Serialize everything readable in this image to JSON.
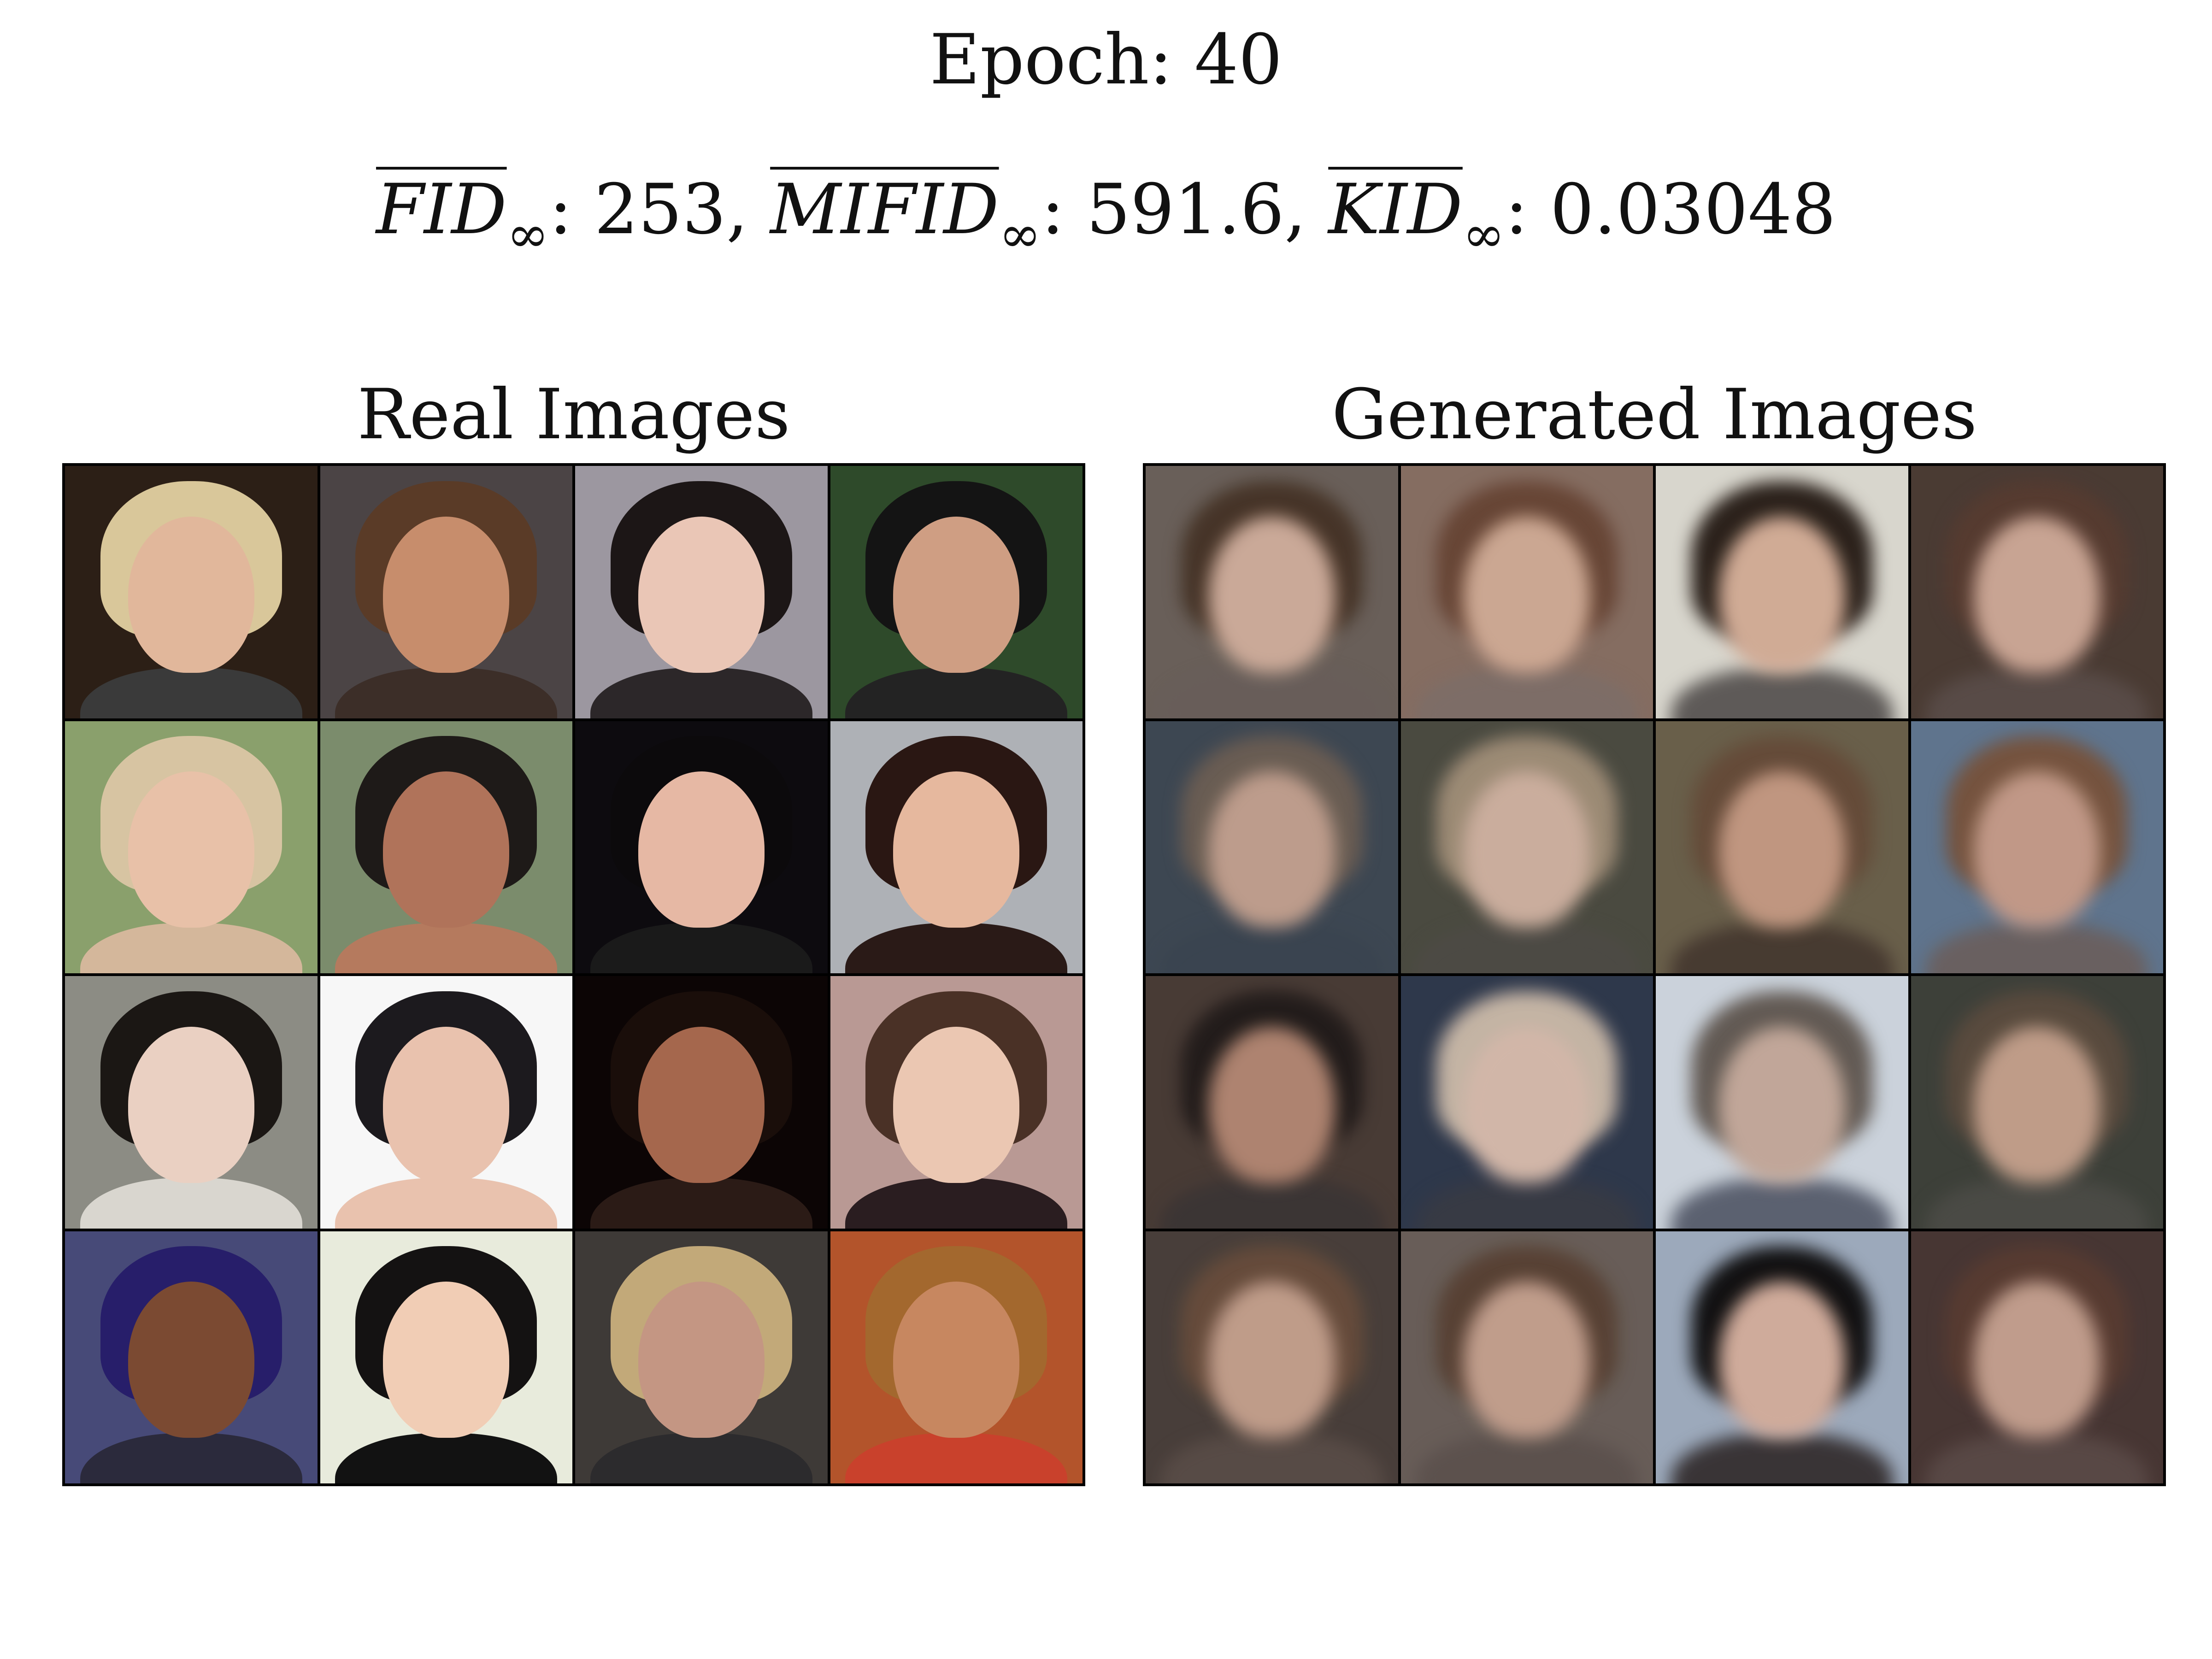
{
  "epoch_label": "Epoch: 40",
  "metrics": [
    {
      "name": "FID",
      "subscript": "∞",
      "value": "253",
      "separator": ","
    },
    {
      "name": "MIFID",
      "subscript": "∞",
      "value": "591.6",
      "separator": ","
    },
    {
      "name": "KID",
      "subscript": "∞",
      "value": "0.03048",
      "separator": ""
    }
  ],
  "panels": {
    "real": {
      "title": "Real Images"
    },
    "generated": {
      "title": "Generated Images"
    }
  },
  "real_tiles": [
    {
      "bg": "#2c1f16",
      "hair": "#d9c79a",
      "skin": "#e1b79b",
      "body": "#3a3a3a"
    },
    {
      "bg": "#4b4445",
      "hair": "#5a3b27",
      "skin": "#c78d6c",
      "body": "#3c2e28"
    },
    {
      "bg": "#9c97a0",
      "hair": "#1c1616",
      "skin": "#eac6b6",
      "body": "#2c2729"
    },
    {
      "bg": "#2e4a2a",
      "hair": "#141414",
      "skin": "#cf9e83",
      "body": "#232323"
    },
    {
      "bg": "#8aa06c",
      "hair": "#d7c4a2",
      "skin": "#e8c1a8",
      "body": "#d4b79b"
    },
    {
      "bg": "#7b8c6c",
      "hair": "#1e1a18",
      "skin": "#b0735a",
      "body": "#b57a5e"
    },
    {
      "bg": "#0d0b0f",
      "hair": "#0c0a0c",
      "skin": "#e6b8a4",
      "body": "#1a1a1a"
    },
    {
      "bg": "#aeb1b6",
      "hair": "#2a1713",
      "skin": "#e6b89e",
      "body": "#2a1a17"
    },
    {
      "bg": "#8c8c84",
      "hair": "#1b1714",
      "skin": "#ead0c2",
      "body": "#d9d6cf"
    },
    {
      "bg": "#f7f7f7",
      "hair": "#1c1a1e",
      "skin": "#e9c2ae",
      "body": "#e9c2ae"
    },
    {
      "bg": "#0c0505",
      "hair": "#1a0e0a",
      "skin": "#a5674d",
      "body": "#2b1b16"
    },
    {
      "bg": "#b99994",
      "hair": "#4a3126",
      "skin": "#ebc7b2",
      "body": "#2a1d20"
    },
    {
      "bg": "#474a78",
      "hair": "#271e6a",
      "skin": "#7b4a32",
      "body": "#2b2a3c"
    },
    {
      "bg": "#e8ebdc",
      "hair": "#141212",
      "skin": "#f1cdb5",
      "body": "#121212"
    },
    {
      "bg": "#3e3a37",
      "hair": "#c2a979",
      "skin": "#c49683",
      "body": "#2c2b2d"
    },
    {
      "bg": "#b3542b",
      "hair": "#a3682e",
      "skin": "#c78760",
      "body": "#c9412c"
    }
  ],
  "generated_tiles": [
    {
      "bg": "#6b5f57",
      "hair": "#4a3324",
      "skin": "#d1a892",
      "body": "#6a5d58"
    },
    {
      "bg": "#8a6c5d",
      "hair": "#6e4430",
      "skin": "#d3a58b",
      "body": "#806c65"
    },
    {
      "bg": "#d9d6cb",
      "hair": "#2d2119",
      "skin": "#d8a98e",
      "body": "#5f5a57"
    },
    {
      "bg": "#4d3a31",
      "hair": "#5b3a2c",
      "skin": "#d0a28d",
      "body": "#5b4a45"
    },
    {
      "bg": "#3b4755",
      "hair": "#6c5c50",
      "skin": "#c49b86",
      "body": "#384453"
    },
    {
      "bg": "#4a4a3e",
      "hair": "#a08a6f",
      "skin": "#d0ac98",
      "body": "#4d4a43"
    },
    {
      "bg": "#6b5f45",
      "hair": "#6a4a33",
      "skin": "#c99479",
      "body": "#4a3a2e"
    },
    {
      "bg": "#5a7594",
      "hair": "#7c5238",
      "skin": "#c99681",
      "body": "#6b6060"
    },
    {
      "bg": "#4b3a33",
      "hair": "#231c1a",
      "skin": "#b78169",
      "body": "#3c3534"
    },
    {
      "bg": "#2c3850",
      "hair": "#c7b3a0",
      "skin": "#d7b5a3",
      "body": "#363a47"
    },
    {
      "bg": "#c9d2dd",
      "hair": "#645a52",
      "skin": "#c6a594",
      "body": "#5a6174"
    },
    {
      "bg": "#3d4038",
      "hair": "#5c4a3a",
      "skin": "#c69b82",
      "body": "#4a4a44"
    },
    {
      "bg": "#4a3e38",
      "hair": "#6b4a36",
      "skin": "#c69a83",
      "body": "#5a4a44"
    },
    {
      "bg": "#6a5d56",
      "hair": "#5c4030",
      "skin": "#c79b85",
      "body": "#5e514c"
    },
    {
      "bg": "#99a9c0",
      "hair": "#121112",
      "skin": "#d7a995",
      "body": "#3a3436"
    },
    {
      "bg": "#4b3532",
      "hair": "#5d3a2d",
      "skin": "#c79a86",
      "body": "#5b4744"
    }
  ]
}
